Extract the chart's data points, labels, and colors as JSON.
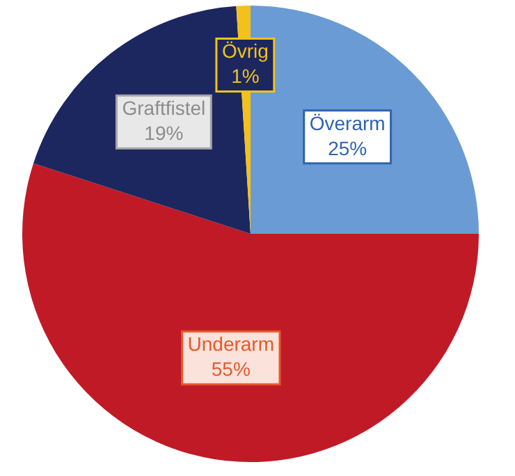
{
  "chart_data": {
    "type": "pie",
    "categories": [
      "Överarm",
      "Underarm",
      "Graftfistel",
      "Övrig"
    ],
    "values": [
      25,
      55,
      19,
      1
    ],
    "colors": [
      "#6a9bd4",
      "#c01a26",
      "#1c2760",
      "#f2c21a"
    ],
    "value_labels": [
      "25%",
      "55%",
      "19%",
      "1%"
    ]
  }
}
